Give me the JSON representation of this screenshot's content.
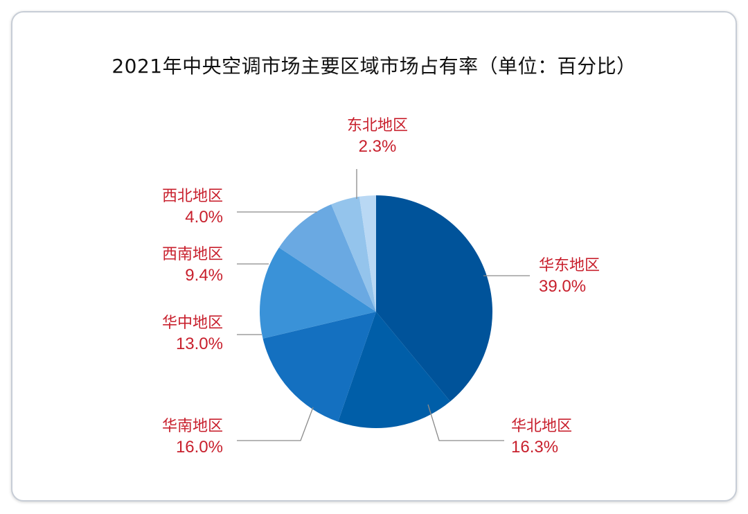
{
  "chart_data": {
    "type": "pie",
    "title": "2021年中央空调市场主要区域市场占有率（单位：百分比）",
    "unit": "%",
    "start_angle_deg": 0,
    "direction": "clockwise",
    "label_color": "#c8202d",
    "leader_color": "#8a8a8a",
    "slices": [
      {
        "label": "华东地区",
        "value_text": "39.0%",
        "value": 39.0,
        "color": "#00539a"
      },
      {
        "label": "华北地区",
        "value_text": "16.3%",
        "value": 16.3,
        "color": "#005ea8"
      },
      {
        "label": "华南地区",
        "value_text": "16.0%",
        "value": 16.0,
        "color": "#1470c0"
      },
      {
        "label": "华中地区",
        "value_text": "13.0%",
        "value": 13.0,
        "color": "#3a92d8"
      },
      {
        "label": "西南地区",
        "value_text": "9.4%",
        "value": 9.4,
        "color": "#6aa9e2"
      },
      {
        "label": "西北地区",
        "value_text": "4.0%",
        "value": 4.0,
        "color": "#94c4ec"
      },
      {
        "label": "东北地区",
        "value_text": "2.3%",
        "value": 2.3,
        "color": "#b9d8f4"
      }
    ]
  }
}
